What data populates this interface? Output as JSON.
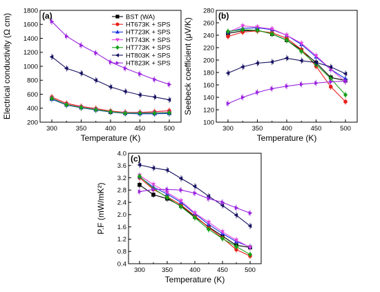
{
  "series_styles": [
    {
      "color": "#000000",
      "marker": "square"
    },
    {
      "color": "#e8201a",
      "marker": "circle"
    },
    {
      "color": "#1430e0",
      "marker": "triangle-up"
    },
    {
      "color": "#e040e0",
      "marker": "triangle-down"
    },
    {
      "color": "#18a018",
      "marker": "diamond"
    },
    {
      "color": "#151060",
      "marker": "triangle-left"
    },
    {
      "color": "#9a22e0",
      "marker": "triangle-right"
    }
  ],
  "chart_data": [
    {
      "panel": "(a)",
      "type": "line",
      "xlabel": "Temperature (K)",
      "ylabel": "Electrical conductivity (Ω cm)",
      "xlim": [
        280,
        520
      ],
      "ylim": [
        200,
        1800
      ],
      "xticks": [
        300,
        350,
        400,
        450,
        500
      ],
      "yticks": [
        200,
        400,
        600,
        800,
        1000,
        1200,
        1400,
        1600,
        1800
      ],
      "legend_position": "top-right",
      "x": [
        300,
        325,
        350,
        375,
        400,
        425,
        450,
        475,
        500
      ],
      "series": [
        {
          "name": "BST (WA)",
          "values": [
            535,
            450,
            410,
            380,
            345,
            330,
            330,
            330,
            330
          ]
        },
        {
          "name": "HT673K + SPS",
          "values": [
            560,
            470,
            425,
            395,
            360,
            340,
            340,
            350,
            365
          ]
        },
        {
          "name": "HT723K + SPS",
          "values": [
            530,
            445,
            405,
            375,
            345,
            325,
            320,
            320,
            325
          ]
        },
        {
          "name": "HT743K + SPS",
          "values": [
            545,
            455,
            415,
            385,
            350,
            335,
            335,
            335,
            340
          ]
        },
        {
          "name": "HT773K + SPS",
          "values": [
            540,
            450,
            410,
            380,
            350,
            330,
            330,
            330,
            335
          ]
        },
        {
          "name": "HT803K + SPS",
          "values": [
            1135,
            970,
            900,
            800,
            705,
            640,
            590,
            560,
            520
          ]
        },
        {
          "name": "HT823K + SPS",
          "values": [
            1640,
            1430,
            1300,
            1190,
            1060,
            970,
            890,
            810,
            740
          ]
        }
      ]
    },
    {
      "panel": "(b)",
      "type": "line",
      "xlabel": "Temperature (K)",
      "ylabel": "Seebeck coefficient (μV/K)",
      "xlim": [
        280,
        520
      ],
      "ylim": [
        100,
        280
      ],
      "xticks": [
        300,
        350,
        400,
        450,
        500
      ],
      "yticks": [
        100,
        120,
        140,
        160,
        180,
        200,
        220,
        240,
        260,
        280
      ],
      "x": [
        300,
        325,
        350,
        375,
        400,
        425,
        450,
        475,
        500
      ],
      "series": [
        {
          "name": "BST (WA)",
          "values": [
            243,
            247,
            248,
            242,
            232,
            216,
            196,
            172,
            167
          ]
        },
        {
          "name": "HT673K + SPS",
          "values": [
            238,
            245,
            247,
            244,
            235,
            217,
            190,
            157,
            133
          ]
        },
        {
          "name": "HT723K + SPS",
          "values": [
            245,
            251,
            252,
            249,
            240,
            225,
            205,
            185,
            170
          ]
        },
        {
          "name": "HT743K + SPS",
          "values": [
            245,
            255,
            253,
            250,
            240,
            227,
            207,
            185,
            165
          ]
        },
        {
          "name": "HT773K + SPS",
          "values": [
            246,
            249,
            248,
            242,
            232,
            214,
            193,
            170,
            144
          ]
        },
        {
          "name": "HT803K + SPS",
          "values": [
            179,
            189,
            195,
            197,
            203,
            199,
            196,
            189,
            178
          ]
        },
        {
          "name": "HT823K + SPS",
          "values": [
            130,
            140,
            148,
            154,
            158,
            161,
            163,
            165,
            166
          ]
        }
      ]
    },
    {
      "panel": "(c)",
      "type": "line",
      "xlabel": "Temperature (K)",
      "ylabel": "P.F (mW/mK²)",
      "xlim": [
        280,
        520
      ],
      "ylim": [
        0.4,
        4.0
      ],
      "xticks": [
        300,
        350,
        400,
        450,
        500
      ],
      "yticks": [
        0.4,
        0.8,
        1.2,
        1.6,
        2.0,
        2.4,
        2.8,
        3.2,
        3.6,
        4.0
      ],
      "x": [
        300,
        325,
        350,
        375,
        400,
        425,
        450,
        475,
        500
      ],
      "series": [
        {
          "name": "BST (WA)",
          "values": [
            2.97,
            2.65,
            2.52,
            2.28,
            1.93,
            1.6,
            1.3,
            1.0,
            0.93
          ]
        },
        {
          "name": "HT673K + SPS",
          "values": [
            3.2,
            2.82,
            2.58,
            2.32,
            1.96,
            1.58,
            1.24,
            0.86,
            0.65
          ]
        },
        {
          "name": "HT723K + SPS",
          "values": [
            3.23,
            2.9,
            2.67,
            2.4,
            2.03,
            1.68,
            1.38,
            1.12,
            0.95
          ]
        },
        {
          "name": "HT743K + SPS",
          "values": [
            3.28,
            2.98,
            2.72,
            2.45,
            2.05,
            1.75,
            1.44,
            1.17,
            0.93
          ]
        },
        {
          "name": "HT773K + SPS",
          "values": [
            3.25,
            2.85,
            2.56,
            2.26,
            1.9,
            1.52,
            1.22,
            0.96,
            0.7
          ]
        },
        {
          "name": "HT803K + SPS",
          "values": [
            3.62,
            3.52,
            3.45,
            3.18,
            2.92,
            2.6,
            2.3,
            1.98,
            1.63
          ]
        },
        {
          "name": "HT823K + SPS",
          "values": [
            2.75,
            2.82,
            2.82,
            2.8,
            2.7,
            2.52,
            2.4,
            2.22,
            2.05
          ]
        }
      ]
    }
  ]
}
